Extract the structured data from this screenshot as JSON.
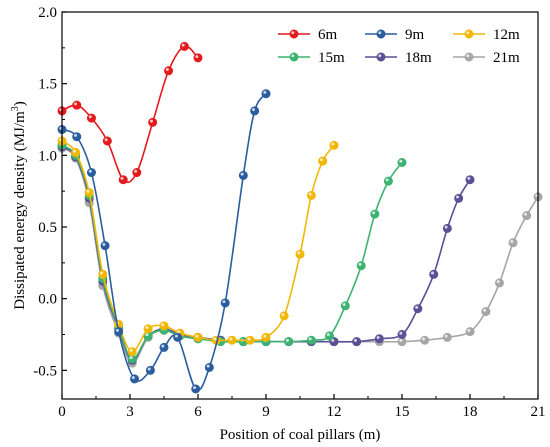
{
  "chart_data": {
    "type": "line",
    "title": "",
    "xlabel": "Position of coal pillars (m)",
    "ylabel": "Dissipated energy density (MJ/m³)",
    "ylabel_base": "Dissipated energy density (MJ/m",
    "ylabel_sup": "3",
    "ylabel_close": ")",
    "xlim": [
      0,
      21
    ],
    "ylim": [
      -0.7,
      2.0
    ],
    "xticks": [
      0,
      3,
      6,
      9,
      12,
      15,
      18,
      21
    ],
    "yticks": [
      -0.5,
      0.0,
      0.5,
      1.0,
      1.5,
      2.0
    ],
    "xtick_labels": [
      "0",
      "3",
      "6",
      "9",
      "12",
      "15",
      "18",
      "21"
    ],
    "ytick_labels": [
      "-0.5",
      "0.0",
      "0.5",
      "1.0",
      "1.5",
      "2.0"
    ],
    "grid": false,
    "legend_position": "top-right",
    "series": [
      {
        "name": "6m",
        "color": "#e41a1c",
        "points": [
          [
            0,
            1.31
          ],
          [
            0.65,
            1.35
          ],
          [
            1.3,
            1.26
          ],
          [
            2.0,
            1.1
          ],
          [
            2.7,
            0.83
          ],
          [
            3.3,
            0.88
          ],
          [
            4.0,
            1.23
          ],
          [
            4.7,
            1.59
          ],
          [
            5.4,
            1.76
          ],
          [
            6.0,
            1.68
          ]
        ]
      },
      {
        "name": "9m",
        "color": "#2a5d9f",
        "points": [
          [
            0,
            1.18
          ],
          [
            0.65,
            1.13
          ],
          [
            1.3,
            0.88
          ],
          [
            1.9,
            0.37
          ],
          [
            2.5,
            -0.23
          ],
          [
            3.2,
            -0.56
          ],
          [
            3.9,
            -0.5
          ],
          [
            4.5,
            -0.34
          ],
          [
            5.1,
            -0.27
          ],
          [
            5.9,
            -0.63
          ],
          [
            6.5,
            -0.48
          ],
          [
            7.2,
            -0.03
          ],
          [
            8.0,
            0.86
          ],
          [
            8.5,
            1.31
          ],
          [
            9.0,
            1.43
          ]
        ]
      },
      {
        "name": "12m",
        "color": "#f2b705",
        "points": [
          [
            0,
            1.1
          ],
          [
            0.6,
            1.02
          ],
          [
            1.2,
            0.74
          ],
          [
            1.8,
            0.17
          ],
          [
            2.5,
            -0.18
          ],
          [
            3.1,
            -0.37
          ],
          [
            3.8,
            -0.21
          ],
          [
            4.5,
            -0.19
          ],
          [
            5.2,
            -0.24
          ],
          [
            6.0,
            -0.27
          ],
          [
            6.8,
            -0.29
          ],
          [
            7.5,
            -0.29
          ],
          [
            8.3,
            -0.29
          ],
          [
            9.0,
            -0.27
          ],
          [
            9.8,
            -0.12
          ],
          [
            10.5,
            0.31
          ],
          [
            11.0,
            0.72
          ],
          [
            11.5,
            0.96
          ],
          [
            12.0,
            1.07
          ]
        ]
      },
      {
        "name": "15m",
        "color": "#3cb371",
        "points": [
          [
            0,
            1.07
          ],
          [
            0.6,
            1.0
          ],
          [
            1.2,
            0.72
          ],
          [
            1.8,
            0.14
          ],
          [
            2.5,
            -0.2
          ],
          [
            3.1,
            -0.42
          ],
          [
            3.8,
            -0.26
          ],
          [
            4.5,
            -0.22
          ],
          [
            5.2,
            -0.26
          ],
          [
            6.0,
            -0.28
          ],
          [
            7.0,
            -0.3
          ],
          [
            8.0,
            -0.3
          ],
          [
            9.0,
            -0.3
          ],
          [
            10.0,
            -0.3
          ],
          [
            11.0,
            -0.29
          ],
          [
            11.8,
            -0.26
          ],
          [
            12.5,
            -0.05
          ],
          [
            13.2,
            0.23
          ],
          [
            13.8,
            0.59
          ],
          [
            14.4,
            0.82
          ],
          [
            15.0,
            0.95
          ]
        ]
      },
      {
        "name": "18m",
        "color": "#5b4f96",
        "points": [
          [
            0,
            1.06
          ],
          [
            0.6,
            0.99
          ],
          [
            1.2,
            0.7
          ],
          [
            1.8,
            0.12
          ],
          [
            2.5,
            -0.21
          ],
          [
            3.1,
            -0.43
          ],
          [
            3.8,
            -0.26
          ],
          [
            4.5,
            -0.21
          ],
          [
            5.2,
            -0.25
          ],
          [
            6.0,
            -0.27
          ],
          [
            7.0,
            -0.29
          ],
          [
            8.0,
            -0.3
          ],
          [
            9.0,
            -0.3
          ],
          [
            10.0,
            -0.3
          ],
          [
            11.0,
            -0.3
          ],
          [
            12.0,
            -0.3
          ],
          [
            13.0,
            -0.3
          ],
          [
            14.0,
            -0.28
          ],
          [
            15.0,
            -0.25
          ],
          [
            15.7,
            -0.07
          ],
          [
            16.4,
            0.17
          ],
          [
            17.0,
            0.49
          ],
          [
            17.5,
            0.7
          ],
          [
            18.0,
            0.83
          ]
        ]
      },
      {
        "name": "21m",
        "color": "#a6a6a6",
        "points": [
          [
            0,
            1.05
          ],
          [
            0.6,
            0.98
          ],
          [
            1.2,
            0.67
          ],
          [
            1.8,
            0.09
          ],
          [
            2.5,
            -0.24
          ],
          [
            3.1,
            -0.45
          ],
          [
            3.8,
            -0.27
          ],
          [
            4.5,
            -0.22
          ],
          [
            5.2,
            -0.26
          ],
          [
            6.0,
            -0.28
          ],
          [
            7.0,
            -0.29
          ],
          [
            8.0,
            -0.3
          ],
          [
            9.0,
            -0.3
          ],
          [
            10.0,
            -0.3
          ],
          [
            11.0,
            -0.3
          ],
          [
            12.0,
            -0.3
          ],
          [
            13.0,
            -0.3
          ],
          [
            14.0,
            -0.3
          ],
          [
            15.0,
            -0.3
          ],
          [
            16.0,
            -0.29
          ],
          [
            17.0,
            -0.27
          ],
          [
            18.0,
            -0.23
          ],
          [
            18.7,
            -0.09
          ],
          [
            19.3,
            0.11
          ],
          [
            19.9,
            0.39
          ],
          [
            20.5,
            0.58
          ],
          [
            21.0,
            0.71
          ]
        ]
      }
    ]
  }
}
